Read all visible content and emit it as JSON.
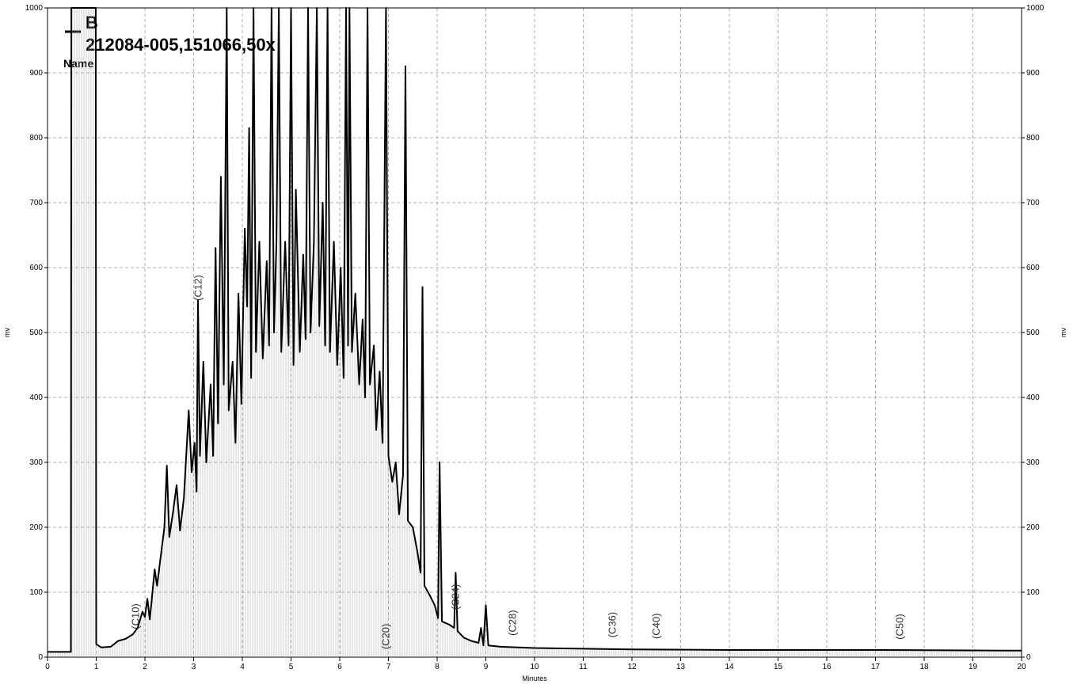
{
  "chart_data": {
    "type": "line",
    "legend_symbol": "B",
    "legend_title": "212084-005,151066,50x",
    "legend_label": "Name",
    "xlabel": "Minutes",
    "ylabel": "mv",
    "y2label": "mv",
    "xlim": [
      0,
      20
    ],
    "ylim": [
      0,
      1000
    ],
    "xticks": [
      0,
      1,
      2,
      3,
      4,
      5,
      6,
      7,
      8,
      9,
      10,
      11,
      12,
      13,
      14,
      15,
      16,
      17,
      18,
      19,
      20
    ],
    "yticks": [
      0,
      100,
      200,
      300,
      400,
      500,
      600,
      700,
      800,
      900,
      1000
    ],
    "grid": true,
    "x": [
      0,
      0.48,
      0.49,
      0.99,
      1.0,
      1.1,
      1.3,
      1.45,
      1.6,
      1.75,
      1.85,
      1.95,
      2.0,
      2.05,
      2.1,
      2.2,
      2.25,
      2.3,
      2.4,
      2.45,
      2.5,
      2.58,
      2.65,
      2.72,
      2.8,
      2.9,
      2.96,
      3.02,
      3.06,
      3.09,
      3.13,
      3.2,
      3.26,
      3.35,
      3.4,
      3.45,
      3.5,
      3.56,
      3.62,
      3.68,
      3.72,
      3.8,
      3.86,
      3.92,
      3.98,
      4.05,
      4.1,
      4.14,
      4.18,
      4.23,
      4.28,
      4.35,
      4.42,
      4.5,
      4.55,
      4.6,
      4.65,
      4.7,
      4.75,
      4.8,
      4.88,
      4.95,
      5.0,
      5.05,
      5.1,
      5.18,
      5.25,
      5.3,
      5.35,
      5.4,
      5.47,
      5.53,
      5.58,
      5.65,
      5.7,
      5.75,
      5.8,
      5.88,
      5.95,
      6.02,
      6.08,
      6.13,
      6.17,
      6.2,
      6.25,
      6.32,
      6.4,
      6.47,
      6.52,
      6.57,
      6.62,
      6.7,
      6.75,
      6.82,
      6.88,
      6.95,
      7.0,
      7.08,
      7.15,
      7.22,
      7.3,
      7.35,
      7.4,
      7.5,
      7.6,
      7.66,
      7.7,
      7.74,
      7.85,
      7.95,
      8.02,
      8.05,
      8.1,
      8.25,
      8.35,
      8.38,
      8.42,
      8.55,
      8.7,
      8.85,
      8.9,
      8.95,
      9.0,
      9.05,
      9.3,
      10,
      12,
      14,
      17,
      20
    ],
    "series": [
      {
        "name": "212084-005,151066,50x",
        "color": "#000000",
        "values": [
          8,
          8,
          1000,
          1000,
          20,
          15,
          16,
          25,
          28,
          35,
          45,
          70,
          62,
          90,
          58,
          135,
          110,
          140,
          200,
          295,
          185,
          225,
          265,
          195,
          245,
          380,
          285,
          330,
          255,
          550,
          310,
          455,
          300,
          420,
          310,
          630,
          360,
          740,
          420,
          1000,
          380,
          455,
          330,
          560,
          390,
          660,
          540,
          815,
          430,
          1000,
          470,
          640,
          460,
          610,
          480,
          1000,
          500,
          640,
          1000,
          470,
          640,
          480,
          1000,
          450,
          720,
          470,
          620,
          490,
          1000,
          500,
          640,
          1000,
          510,
          700,
          480,
          1000,
          470,
          640,
          450,
          600,
          430,
          1000,
          480,
          1000,
          470,
          560,
          420,
          520,
          400,
          1000,
          420,
          480,
          350,
          440,
          330,
          1000,
          310,
          270,
          300,
          220,
          280,
          910,
          210,
          200,
          160,
          130,
          570,
          110,
          95,
          80,
          60,
          300,
          55,
          50,
          45,
          130,
          40,
          30,
          25,
          22,
          45,
          18,
          80,
          18,
          16,
          14,
          12,
          11,
          11,
          10
        ]
      }
    ],
    "annotations": [
      {
        "text": "(C10)",
        "x": 1.81,
        "y": 43
      },
      {
        "text": "(C12)",
        "x": 3.1,
        "y": 549
      },
      {
        "text": "(C20)",
        "x": 6.95,
        "y": 12
      },
      {
        "text": "(C24)",
        "x": 8.38,
        "y": 73
      },
      {
        "text": "(C28)",
        "x": 9.55,
        "y": 33
      },
      {
        "text": "(C36)",
        "x": 11.6,
        "y": 30
      },
      {
        "text": "(C40)",
        "x": 12.5,
        "y": 28
      },
      {
        "text": "(C50)",
        "x": 17.5,
        "y": 27
      }
    ]
  }
}
